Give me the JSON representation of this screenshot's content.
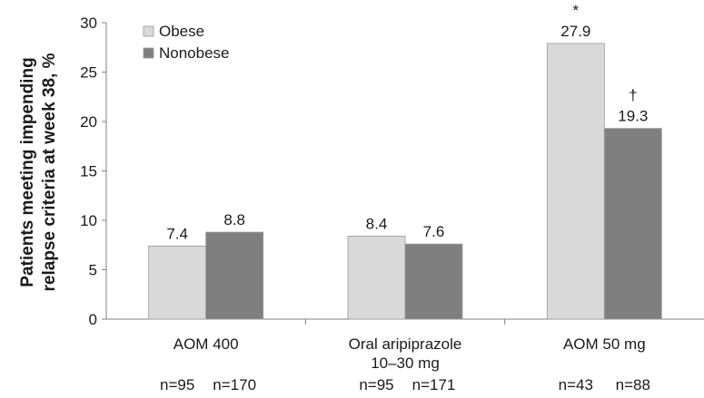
{
  "chart_data": {
    "type": "bar",
    "title": "",
    "xlabel": "",
    "ylabel_lines": [
      "Patients meeting impending",
      "relapse criteria at week 38, %"
    ],
    "ylim": [
      0,
      30
    ],
    "yticks": [
      0,
      5,
      10,
      15,
      20,
      25,
      30
    ],
    "grid": false,
    "legend_position": "top-left",
    "categories": [
      {
        "lines": [
          "AOM 400"
        ],
        "n": [
          "n=95",
          "n=170"
        ]
      },
      {
        "lines": [
          "Oral aripiprazole",
          "10–30 mg"
        ],
        "n": [
          "n=95",
          "n=171"
        ]
      },
      {
        "lines": [
          "AOM 50 mg"
        ],
        "n": [
          "n=43",
          "n=88"
        ]
      }
    ],
    "series": [
      {
        "name": "Obese",
        "color": "#d9d9d9",
        "values": [
          7.4,
          8.4,
          27.9
        ],
        "labels": [
          "7.4",
          "8.4",
          "27.9"
        ],
        "marks": [
          "",
          "",
          "*"
        ]
      },
      {
        "name": "Nonobese",
        "color": "#7f7f7f",
        "values": [
          8.8,
          7.6,
          19.3
        ],
        "labels": [
          "8.8",
          "7.6",
          "19.3"
        ],
        "marks": [
          "",
          "",
          "†"
        ]
      }
    ]
  }
}
